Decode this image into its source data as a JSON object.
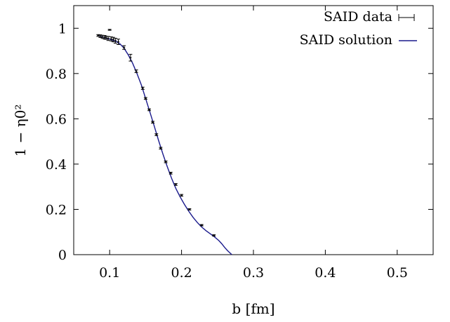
{
  "chart_data": {
    "type": "scatter",
    "xlabel": "b [fm]",
    "ylabel": "1 − η0²",
    "xlim": [
      0.05,
      0.55
    ],
    "ylim": [
      0,
      1.1
    ],
    "x_ticks": [
      0.1,
      0.2,
      0.3,
      0.4,
      0.5
    ],
    "x_tick_labels": [
      "0.1",
      "0.2",
      "0.3",
      "0.4",
      "0.5"
    ],
    "y_ticks": [
      0,
      0.2,
      0.4,
      0.6,
      0.8,
      1
    ],
    "y_tick_labels": [
      "0",
      "0.2",
      "0.4",
      "0.6",
      "0.8",
      "1"
    ],
    "grid": false,
    "legend_position": "top-right",
    "series": [
      {
        "name": "SAID data",
        "kind": "points-with-errorbars",
        "color": "#000000",
        "points": [
          {
            "x": 0.084,
            "y": 0.968,
            "err": 0.004
          },
          {
            "x": 0.087,
            "y": 0.965,
            "err": 0.006
          },
          {
            "x": 0.09,
            "y": 0.962,
            "err": 0.007
          },
          {
            "x": 0.093,
            "y": 0.96,
            "err": 0.008
          },
          {
            "x": 0.095,
            "y": 0.958,
            "err": 0.007
          },
          {
            "x": 0.098,
            "y": 0.955,
            "err": 0.009
          },
          {
            "x": 0.1,
            "y": 0.993,
            "err": 0.002
          },
          {
            "x": 0.102,
            "y": 0.953,
            "err": 0.009
          },
          {
            "x": 0.105,
            "y": 0.95,
            "err": 0.01
          },
          {
            "x": 0.108,
            "y": 0.945,
            "err": 0.011
          },
          {
            "x": 0.112,
            "y": 0.94,
            "err": 0.012
          },
          {
            "x": 0.12,
            "y": 0.915,
            "err": 0.008
          },
          {
            "x": 0.129,
            "y": 0.87,
            "err": 0.015
          },
          {
            "x": 0.137,
            "y": 0.81,
            "err": 0.006
          },
          {
            "x": 0.146,
            "y": 0.735,
            "err": 0.005
          },
          {
            "x": 0.15,
            "y": 0.69,
            "err": 0.004
          },
          {
            "x": 0.155,
            "y": 0.64,
            "err": 0.004
          },
          {
            "x": 0.16,
            "y": 0.585,
            "err": 0.004
          },
          {
            "x": 0.165,
            "y": 0.53,
            "err": 0.004
          },
          {
            "x": 0.171,
            "y": 0.47,
            "err": 0.004
          },
          {
            "x": 0.178,
            "y": 0.41,
            "err": 0.004
          },
          {
            "x": 0.185,
            "y": 0.36,
            "err": 0.004
          },
          {
            "x": 0.192,
            "y": 0.31,
            "err": 0.004
          },
          {
            "x": 0.2,
            "y": 0.262,
            "err": 0.004
          },
          {
            "x": 0.211,
            "y": 0.2,
            "err": 0.003
          },
          {
            "x": 0.228,
            "y": 0.13,
            "err": 0.003
          },
          {
            "x": 0.245,
            "y": 0.085,
            "err": 0.003
          }
        ]
      },
      {
        "name": "SAID solution",
        "kind": "line",
        "color": "#1a1a8c",
        "x": [
          0.084,
          0.09,
          0.096,
          0.102,
          0.108,
          0.114,
          0.12,
          0.126,
          0.132,
          0.138,
          0.144,
          0.15,
          0.156,
          0.162,
          0.168,
          0.174,
          0.18,
          0.186,
          0.192,
          0.198,
          0.204,
          0.21,
          0.216,
          0.222,
          0.228,
          0.234,
          0.24,
          0.246,
          0.252,
          0.256,
          0.26,
          0.264,
          0.268,
          0.27
        ],
        "y": [
          0.968,
          0.962,
          0.956,
          0.95,
          0.944,
          0.932,
          0.912,
          0.882,
          0.845,
          0.8,
          0.75,
          0.69,
          0.63,
          0.568,
          0.505,
          0.445,
          0.39,
          0.338,
          0.293,
          0.255,
          0.222,
          0.192,
          0.165,
          0.142,
          0.122,
          0.106,
          0.092,
          0.078,
          0.062,
          0.048,
          0.032,
          0.018,
          0.006,
          0.0
        ]
      }
    ]
  }
}
